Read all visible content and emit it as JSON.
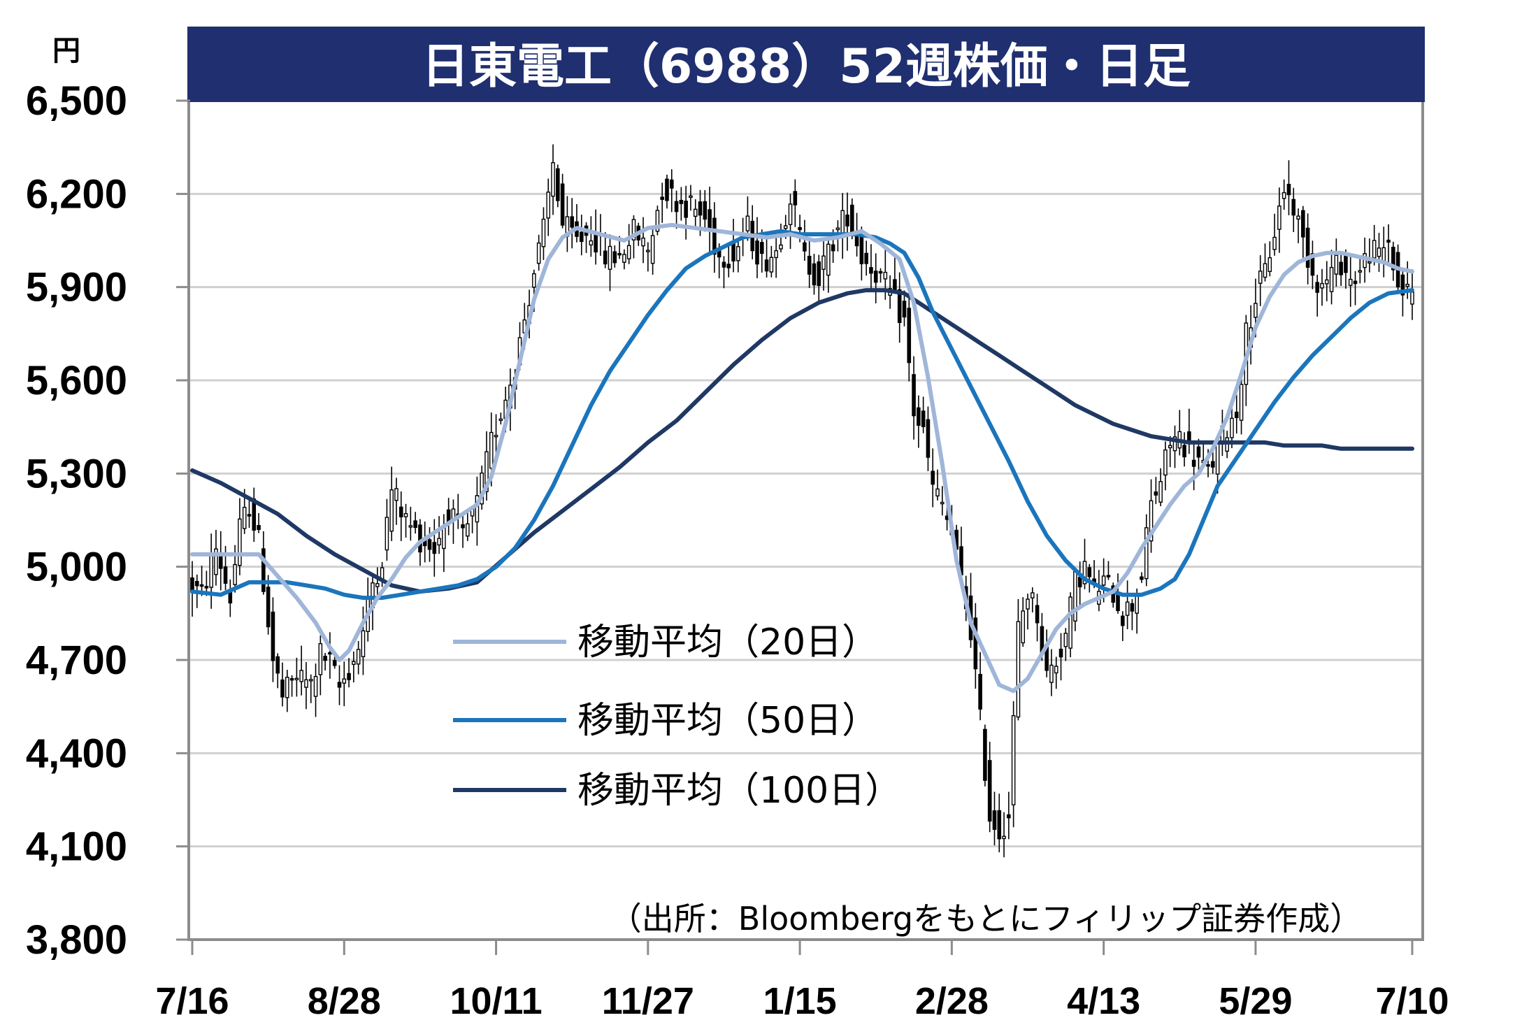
{
  "chart_data": {
    "type": "candlestick",
    "title": "日東電工（6988）52週株価・日足",
    "y_unit": "円",
    "ylim": [
      3800,
      6500
    ],
    "y_ticks": [
      "6,500",
      "6,200",
      "5,900",
      "5,600",
      "5,300",
      "5,000",
      "4,700",
      "4,400",
      "4,100",
      "3,800"
    ],
    "y_tick_values": [
      6500,
      6200,
      5900,
      5600,
      5300,
      5000,
      4700,
      4400,
      4100,
      3800
    ],
    "x_ticks": [
      "7/16",
      "8/28",
      "10/11",
      "11/27",
      "1/15",
      "2/28",
      "4/13",
      "5/29",
      "7/10"
    ],
    "grid": true,
    "colors": {
      "title_bg": "#1f2f6f",
      "ma20": "#9fb6d9",
      "ma50": "#1b75bc",
      "ma100": "#1f3864",
      "grid": "#d0d0d0",
      "frame": "#8c8c8c"
    },
    "legend": [
      {
        "label": "移動平均（20日）",
        "color": "#9fb6d9"
      },
      {
        "label": "移動平均（50日）",
        "color": "#1b75bc"
      },
      {
        "label": "移動平均（100日）",
        "color": "#1f3864"
      }
    ],
    "source": "（出所：Bloombergをもとにフィリップ証券作成）",
    "price_path": [
      [
        0,
        4950
      ],
      [
        3,
        4910
      ],
      [
        6,
        5060
      ],
      [
        9,
        4900
      ],
      [
        11,
        5120
      ],
      [
        13,
        5200
      ],
      [
        15,
        5080
      ],
      [
        18,
        4700
      ],
      [
        20,
        4580
      ],
      [
        23,
        4650
      ],
      [
        26,
        4620
      ],
      [
        28,
        4720
      ],
      [
        30,
        4690
      ],
      [
        32,
        4610
      ],
      [
        35,
        4700
      ],
      [
        37,
        4790
      ],
      [
        39,
        4950
      ],
      [
        41,
        5030
      ],
      [
        43,
        5250
      ],
      [
        46,
        5150
      ],
      [
        49,
        5090
      ],
      [
        52,
        5060
      ],
      [
        55,
        5180
      ],
      [
        58,
        5090
      ],
      [
        61,
        5200
      ],
      [
        64,
        5400
      ],
      [
        67,
        5550
      ],
      [
        69,
        5650
      ],
      [
        71,
        5800
      ],
      [
        73,
        5950
      ],
      [
        75,
        6080
      ],
      [
        77,
        6300
      ],
      [
        79,
        6100
      ],
      [
        82,
        6050
      ],
      [
        85,
        6080
      ],
      [
        88,
        6000
      ],
      [
        91,
        6000
      ],
      [
        94,
        6080
      ],
      [
        97,
        6020
      ],
      [
        100,
        6220
      ],
      [
        103,
        6180
      ],
      [
        106,
        6160
      ],
      [
        109,
        6120
      ],
      [
        112,
        6000
      ],
      [
        115,
        6010
      ],
      [
        118,
        6090
      ],
      [
        121,
        5980
      ],
      [
        124,
        6020
      ],
      [
        127,
        6200
      ],
      [
        130,
        5990
      ],
      [
        133,
        5930
      ],
      [
        136,
        6050
      ],
      [
        139,
        6140
      ],
      [
        142,
        6000
      ],
      [
        145,
        5950
      ],
      [
        148,
        5880
      ],
      [
        151,
        5790
      ],
      [
        153,
        5500
      ],
      [
        155,
        5430
      ],
      [
        157,
        5250
      ],
      [
        159,
        5200
      ],
      [
        161,
        5100
      ],
      [
        163,
        4950
      ],
      [
        165,
        4800
      ],
      [
        167,
        4500
      ],
      [
        169,
        4200
      ],
      [
        171,
        4150
      ],
      [
        173,
        4200
      ],
      [
        175,
        4800
      ],
      [
        177,
        4920
      ],
      [
        179,
        4850
      ],
      [
        181,
        4650
      ],
      [
        183,
        4700
      ],
      [
        185,
        4780
      ],
      [
        187,
        4950
      ],
      [
        189,
        5000
      ],
      [
        191,
        4920
      ],
      [
        193,
        4950
      ],
      [
        195,
        4920
      ],
      [
        197,
        4850
      ],
      [
        199,
        4880
      ],
      [
        201,
        4980
      ],
      [
        203,
        5200
      ],
      [
        205,
        5280
      ],
      [
        207,
        5400
      ],
      [
        209,
        5420
      ],
      [
        211,
        5370
      ],
      [
        213,
        5340
      ],
      [
        215,
        5300
      ],
      [
        217,
        5380
      ],
      [
        219,
        5450
      ],
      [
        221,
        5500
      ],
      [
        223,
        5750
      ],
      [
        225,
        5870
      ],
      [
        227,
        5950
      ],
      [
        229,
        6080
      ],
      [
        231,
        6220
      ],
      [
        233,
        6160
      ],
      [
        235,
        6050
      ],
      [
        237,
        5950
      ],
      [
        239,
        5900
      ],
      [
        241,
        5950
      ],
      [
        243,
        5980
      ],
      [
        245,
        5920
      ],
      [
        247,
        5950
      ],
      [
        249,
        6020
      ],
      [
        251,
        6000
      ],
      [
        253,
        6050
      ],
      [
        255,
        5900
      ],
      [
        257,
        5880
      ]
    ],
    "ma20": [
      [
        0,
        5040
      ],
      [
        10,
        5040
      ],
      [
        14,
        5040
      ],
      [
        18,
        4970
      ],
      [
        22,
        4900
      ],
      [
        26,
        4820
      ],
      [
        29,
        4740
      ],
      [
        31,
        4700
      ],
      [
        33,
        4730
      ],
      [
        36,
        4820
      ],
      [
        39,
        4900
      ],
      [
        42,
        4960
      ],
      [
        45,
        5030
      ],
      [
        48,
        5080
      ],
      [
        51,
        5110
      ],
      [
        54,
        5140
      ],
      [
        57,
        5170
      ],
      [
        60,
        5200
      ],
      [
        63,
        5290
      ],
      [
        66,
        5460
      ],
      [
        69,
        5660
      ],
      [
        72,
        5860
      ],
      [
        75,
        5990
      ],
      [
        78,
        6060
      ],
      [
        81,
        6090
      ],
      [
        86,
        6070
      ],
      [
        91,
        6050
      ],
      [
        96,
        6090
      ],
      [
        101,
        6100
      ],
      [
        106,
        6090
      ],
      [
        111,
        6080
      ],
      [
        116,
        6070
      ],
      [
        121,
        6060
      ],
      [
        126,
        6070
      ],
      [
        131,
        6050
      ],
      [
        136,
        6060
      ],
      [
        141,
        6080
      ],
      [
        145,
        6040
      ],
      [
        149,
        5990
      ],
      [
        152,
        5850
      ],
      [
        155,
        5610
      ],
      [
        158,
        5330
      ],
      [
        161,
        5020
      ],
      [
        164,
        4820
      ],
      [
        167,
        4720
      ],
      [
        170,
        4620
      ],
      [
        173,
        4600
      ],
      [
        176,
        4640
      ],
      [
        179,
        4720
      ],
      [
        182,
        4800
      ],
      [
        185,
        4850
      ],
      [
        188,
        4880
      ],
      [
        191,
        4900
      ],
      [
        194,
        4920
      ],
      [
        197,
        4980
      ],
      [
        200,
        5060
      ],
      [
        203,
        5130
      ],
      [
        206,
        5200
      ],
      [
        209,
        5260
      ],
      [
        212,
        5300
      ],
      [
        215,
        5380
      ],
      [
        218,
        5480
      ],
      [
        221,
        5620
      ],
      [
        224,
        5770
      ],
      [
        227,
        5870
      ],
      [
        230,
        5940
      ],
      [
        233,
        5980
      ],
      [
        236,
        6000
      ],
      [
        239,
        6010
      ],
      [
        242,
        6010
      ],
      [
        245,
        6000
      ],
      [
        248,
        5990
      ],
      [
        251,
        5980
      ],
      [
        254,
        5960
      ],
      [
        257,
        5950
      ]
    ],
    "ma50": [
      [
        0,
        4920
      ],
      [
        6,
        4910
      ],
      [
        9,
        4930
      ],
      [
        12,
        4950
      ],
      [
        16,
        4950
      ],
      [
        20,
        4950
      ],
      [
        24,
        4940
      ],
      [
        28,
        4930
      ],
      [
        32,
        4910
      ],
      [
        36,
        4900
      ],
      [
        40,
        4900
      ],
      [
        44,
        4910
      ],
      [
        48,
        4920
      ],
      [
        52,
        4930
      ],
      [
        56,
        4940
      ],
      [
        60,
        4960
      ],
      [
        64,
        5000
      ],
      [
        68,
        5060
      ],
      [
        72,
        5150
      ],
      [
        76,
        5260
      ],
      [
        80,
        5390
      ],
      [
        84,
        5520
      ],
      [
        88,
        5630
      ],
      [
        92,
        5720
      ],
      [
        96,
        5810
      ],
      [
        100,
        5890
      ],
      [
        104,
        5960
      ],
      [
        108,
        6000
      ],
      [
        112,
        6030
      ],
      [
        116,
        6060
      ],
      [
        120,
        6070
      ],
      [
        124,
        6080
      ],
      [
        128,
        6070
      ],
      [
        132,
        6070
      ],
      [
        136,
        6070
      ],
      [
        140,
        6070
      ],
      [
        144,
        6060
      ],
      [
        147,
        6040
      ],
      [
        150,
        6010
      ],
      [
        153,
        5930
      ],
      [
        156,
        5820
      ],
      [
        160,
        5700
      ],
      [
        164,
        5580
      ],
      [
        168,
        5460
      ],
      [
        172,
        5340
      ],
      [
        176,
        5210
      ],
      [
        180,
        5100
      ],
      [
        184,
        5020
      ],
      [
        188,
        4960
      ],
      [
        192,
        4930
      ],
      [
        196,
        4910
      ],
      [
        200,
        4910
      ],
      [
        204,
        4930
      ],
      [
        207,
        4960
      ],
      [
        210,
        5040
      ],
      [
        213,
        5150
      ],
      [
        216,
        5260
      ],
      [
        220,
        5350
      ],
      [
        224,
        5440
      ],
      [
        228,
        5530
      ],
      [
        232,
        5610
      ],
      [
        236,
        5680
      ],
      [
        240,
        5740
      ],
      [
        244,
        5800
      ],
      [
        248,
        5850
      ],
      [
        252,
        5880
      ],
      [
        257,
        5890
      ]
    ],
    "ma100": [
      [
        0,
        5310
      ],
      [
        6,
        5270
      ],
      [
        12,
        5220
      ],
      [
        18,
        5170
      ],
      [
        24,
        5100
      ],
      [
        30,
        5040
      ],
      [
        36,
        4990
      ],
      [
        42,
        4940
      ],
      [
        48,
        4920
      ],
      [
        54,
        4930
      ],
      [
        60,
        4950
      ],
      [
        66,
        5030
      ],
      [
        72,
        5110
      ],
      [
        78,
        5180
      ],
      [
        84,
        5250
      ],
      [
        90,
        5320
      ],
      [
        96,
        5400
      ],
      [
        102,
        5470
      ],
      [
        108,
        5560
      ],
      [
        114,
        5650
      ],
      [
        120,
        5730
      ],
      [
        126,
        5800
      ],
      [
        132,
        5850
      ],
      [
        138,
        5880
      ],
      [
        142,
        5890
      ],
      [
        146,
        5890
      ],
      [
        150,
        5880
      ],
      [
        154,
        5840
      ],
      [
        158,
        5800
      ],
      [
        162,
        5760
      ],
      [
        166,
        5720
      ],
      [
        170,
        5680
      ],
      [
        174,
        5640
      ],
      [
        178,
        5600
      ],
      [
        182,
        5560
      ],
      [
        186,
        5520
      ],
      [
        190,
        5490
      ],
      [
        194,
        5460
      ],
      [
        198,
        5440
      ],
      [
        202,
        5420
      ],
      [
        206,
        5410
      ],
      [
        210,
        5400
      ],
      [
        214,
        5400
      ],
      [
        218,
        5400
      ],
      [
        222,
        5400
      ],
      [
        226,
        5400
      ],
      [
        230,
        5390
      ],
      [
        234,
        5390
      ],
      [
        238,
        5390
      ],
      [
        242,
        5380
      ],
      [
        246,
        5380
      ],
      [
        250,
        5380
      ],
      [
        254,
        5380
      ],
      [
        257,
        5380
      ]
    ],
    "x_day_count": 258,
    "x_tick_days": [
      0,
      32,
      64,
      96,
      128,
      160,
      192,
      224,
      257
    ]
  }
}
